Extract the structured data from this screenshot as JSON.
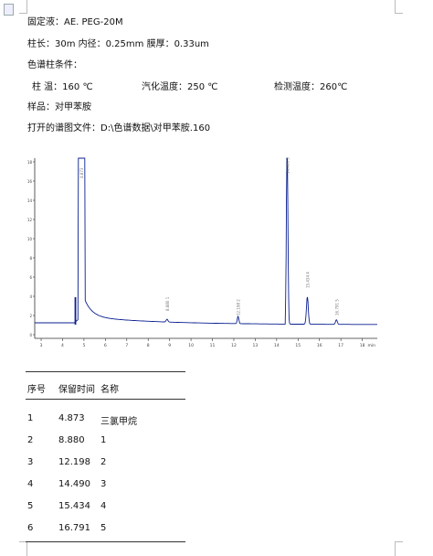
{
  "header": {
    "stationary_phase": "固定液：AE. PEG-20M",
    "column_spec": "柱长：30m 内径：0.25mm  膜厚：0.33um",
    "conditions_title": "色谱柱条件：",
    "column_temp": "柱    温：160 ℃",
    "vaporize_temp": "汽化温度：250 ℃",
    "detector_temp": "检测温度：260℃",
    "sample": "样品：对甲苯胺",
    "file_path": "打开的谱图文件：D:\\色谱数据\\对甲苯胺.160"
  },
  "chart_data": {
    "type": "line",
    "peaks": [
      {
        "time": 4.873,
        "label": "4.873"
      },
      {
        "time": 8.88,
        "label": "8.880 1"
      },
      {
        "time": 12.198,
        "label": "12.198 2"
      },
      {
        "time": 14.49,
        "label": "14.490 3"
      },
      {
        "time": 15.434,
        "label": "15.434 4"
      },
      {
        "time": 16.791,
        "label": "16.791 5"
      }
    ],
    "xlim": [
      2.7,
      18.7
    ],
    "x_unit": "min",
    "x_ticks": [
      "2",
      "3",
      "4",
      "5",
      "6",
      "7",
      "8",
      "9",
      "10",
      "11",
      "12",
      "13",
      "14",
      "15",
      "16",
      "17",
      "18"
    ],
    "y_ticks": [
      "18",
      "16",
      "14",
      "12",
      "10",
      "8",
      "6",
      "4",
      "2",
      "0"
    ],
    "grid": false
  },
  "table": {
    "headers": [
      "序号",
      "保留时间",
      "名称"
    ],
    "rows": [
      [
        "1",
        "4.873",
        "三氯甲烷"
      ],
      [
        "2",
        "8.880",
        "1"
      ],
      [
        "3",
        "12.198",
        "2"
      ],
      [
        "4",
        "14.490",
        "3"
      ],
      [
        "5",
        "15.434",
        "4"
      ],
      [
        "6",
        "16.791",
        "5"
      ]
    ]
  },
  "colors": {
    "trace": "#0a1f8f",
    "axis": "#333333"
  }
}
